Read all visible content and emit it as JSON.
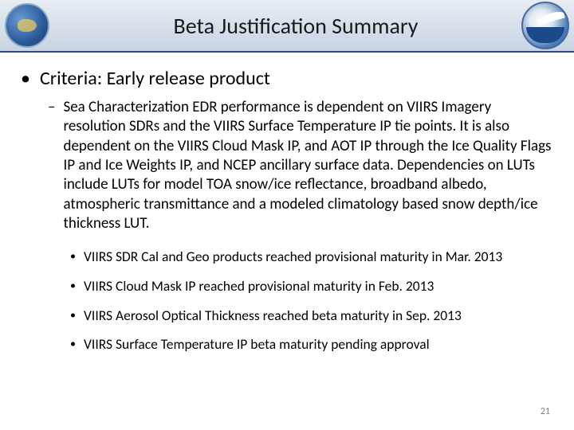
{
  "header": {
    "title": "Beta Justification Summary"
  },
  "criteria": {
    "label": "Criteria: Early release product",
    "sub": "Sea Characterization EDR performance is dependent on VIIRS Imagery resolution SDRs  and the VIIRS Surface Temperature IP tie points.  It is also dependent on the VIIRS Cloud Mask IP, and AOT IP through the Ice Quality Flags IP and Ice Weights IP, and NCEP ancillary surface data. Dependencies on LUTs include LUTs for model TOA snow/ice reflectance, broadband albedo, atmospheric transmittance and a modeled climatology based snow depth/ice thickness LUT.",
    "items": [
      "VIIRS SDR Cal and Geo products reached provisional maturity in Mar. 2013",
      "VIIRS  Cloud Mask IP reached provisional maturity in Feb. 2013",
      "VIIRS Aerosol Optical Thickness reached beta maturity in Sep. 2013",
      "VIIRS Surface Temperature IP beta maturity pending approval"
    ]
  },
  "page_number": "21"
}
